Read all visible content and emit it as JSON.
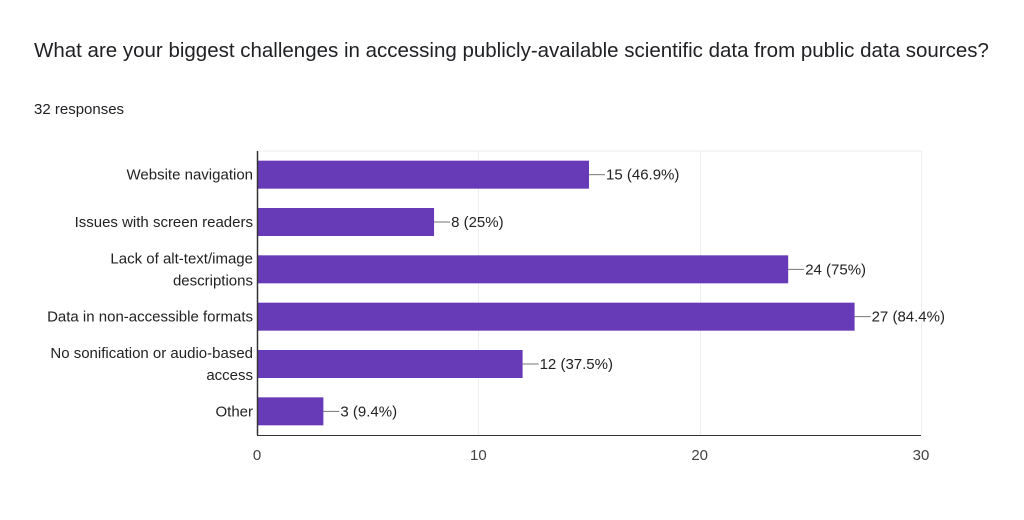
{
  "question": {
    "title": "What are your biggest challenges in accessing publicly-available scientific data from public data sources?",
    "responses": "32 responses"
  },
  "colors": {
    "bar": "#673ab7",
    "grid": "#eeeeee",
    "axis": "#333333",
    "leader": "#757575"
  },
  "chart_data": {
    "type": "bar",
    "orientation": "horizontal",
    "categories": [
      [
        "Website navigation"
      ],
      [
        "Issues with screen readers"
      ],
      [
        "Lack of alt-text/image",
        "descriptions"
      ],
      [
        "Data in non-accessible formats"
      ],
      [
        "No sonification or audio-based",
        "access"
      ],
      [
        "Other"
      ]
    ],
    "values": [
      15,
      8,
      24,
      27,
      12,
      3
    ],
    "value_labels": [
      "15 (46.9%)",
      "8 (25%)",
      "24 (75%)",
      "27 (84.4%)",
      "12 (37.5%)",
      "3 (9.4%)"
    ],
    "xlim": [
      0,
      30
    ],
    "xticks": [
      0,
      10,
      20,
      30
    ],
    "grid": true,
    "legend": "none",
    "title": "What are your biggest challenges in accessing publicly-available scientific data from public data sources?",
    "subtitle": "32 responses"
  }
}
